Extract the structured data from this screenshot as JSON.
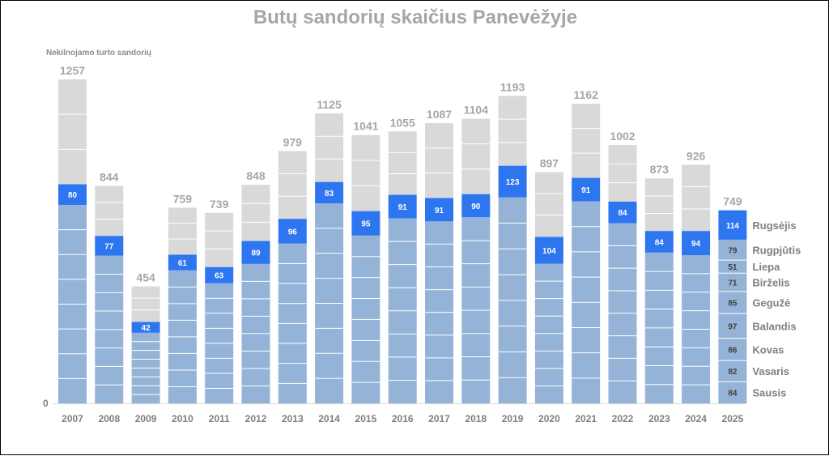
{
  "title": "Butų sandorių skaičius Panevėžyje",
  "y_axis_label": "Nekilnojamo turto sandorių",
  "colors": {
    "jan_aug": "#95b3d7",
    "september": "#2e75f0",
    "oct_dec": "#d9d9d9",
    "title": "#a6a6a6",
    "axis_text": "#7f7f7f"
  },
  "chart_data": {
    "type": "bar",
    "stacked": true,
    "title": "Butų sandorių skaičius Panevėžyje",
    "ylabel": "Nekilnojamo turto sandorių",
    "ylim": [
      0,
      1257
    ],
    "y_tick_labels": [
      "0"
    ],
    "categories": [
      "2007",
      "2008",
      "2009",
      "2010",
      "2011",
      "2012",
      "2013",
      "2014",
      "2015",
      "2016",
      "2017",
      "2018",
      "2019",
      "2020",
      "2021",
      "2022",
      "2023",
      "2024",
      "2025"
    ],
    "totals": [
      1257,
      844,
      454,
      759,
      739,
      848,
      979,
      1125,
      1041,
      1055,
      1087,
      1104,
      1193,
      897,
      1162,
      1002,
      873,
      926,
      749
    ],
    "september_values": [
      80,
      77,
      42,
      61,
      63,
      89,
      96,
      83,
      95,
      91,
      91,
      90,
      123,
      104,
      91,
      84,
      84,
      94,
      114
    ],
    "jan_aug_totals": [
      770,
      573,
      274,
      516,
      466,
      541,
      620,
      776,
      651,
      718,
      706,
      722,
      799,
      542,
      784,
      699,
      585,
      575,
      635
    ],
    "months_2025": [
      {
        "name": "Sausis",
        "value": 84
      },
      {
        "name": "Vasaris",
        "value": 82
      },
      {
        "name": "Kovas",
        "value": 86
      },
      {
        "name": "Balandis",
        "value": 97
      },
      {
        "name": "Gegužė",
        "value": 85
      },
      {
        "name": "Birželis",
        "value": 71
      },
      {
        "name": "Liepa",
        "value": 51
      },
      {
        "name": "Rugpjūtis",
        "value": 79
      },
      {
        "name": "Rugsėjis",
        "value": 114
      }
    ],
    "grid": false
  }
}
